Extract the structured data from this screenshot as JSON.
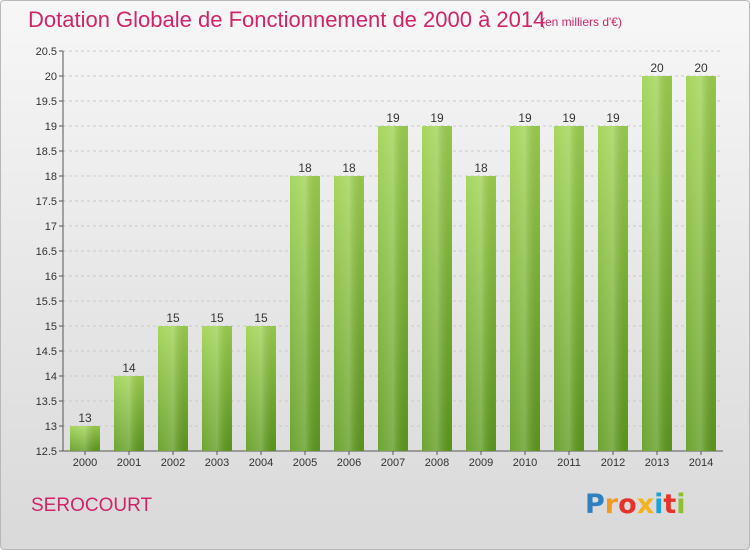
{
  "header": {
    "title": "Dotation Globale de Fonctionnement de 2000 à 2014",
    "subtitle": "(en milliers d'€)"
  },
  "footer": {
    "place": "SEROCOURT",
    "brand": {
      "letters": [
        "P",
        "r",
        "o",
        "x",
        "i",
        "t",
        "i"
      ],
      "colors": [
        "#2f7fc1",
        "#f39a1e",
        "#e6332a",
        "#f3b31e",
        "#1aa3d6",
        "#e6332a",
        "#8dbf2f"
      ]
    }
  },
  "colors": {
    "bar_light": "#9dd24e",
    "bar_dark": "#5d9a1c",
    "title": "#d0246a"
  },
  "chart_data": {
    "type": "bar",
    "categories": [
      "2000",
      "2001",
      "2002",
      "2003",
      "2004",
      "2005",
      "2006",
      "2007",
      "2008",
      "2009",
      "2010",
      "2011",
      "2012",
      "2013",
      "2014"
    ],
    "values": [
      13,
      14,
      15,
      15,
      15,
      18,
      18,
      19,
      19,
      18,
      19,
      19,
      19,
      20,
      20
    ],
    "data_labels": [
      "13",
      "14",
      "15",
      "15",
      "15",
      "18",
      "18",
      "19",
      "19",
      "18",
      "19",
      "19",
      "19",
      "20",
      "20"
    ],
    "ylim": [
      12.5,
      20.5
    ],
    "yticks": [
      "12.5",
      "13",
      "13.5",
      "14",
      "14.5",
      "15",
      "15.5",
      "16",
      "16.5",
      "17",
      "17.5",
      "18",
      "18.5",
      "19",
      "19.5",
      "20",
      "20.5"
    ],
    "grid": true,
    "legend": "none"
  }
}
